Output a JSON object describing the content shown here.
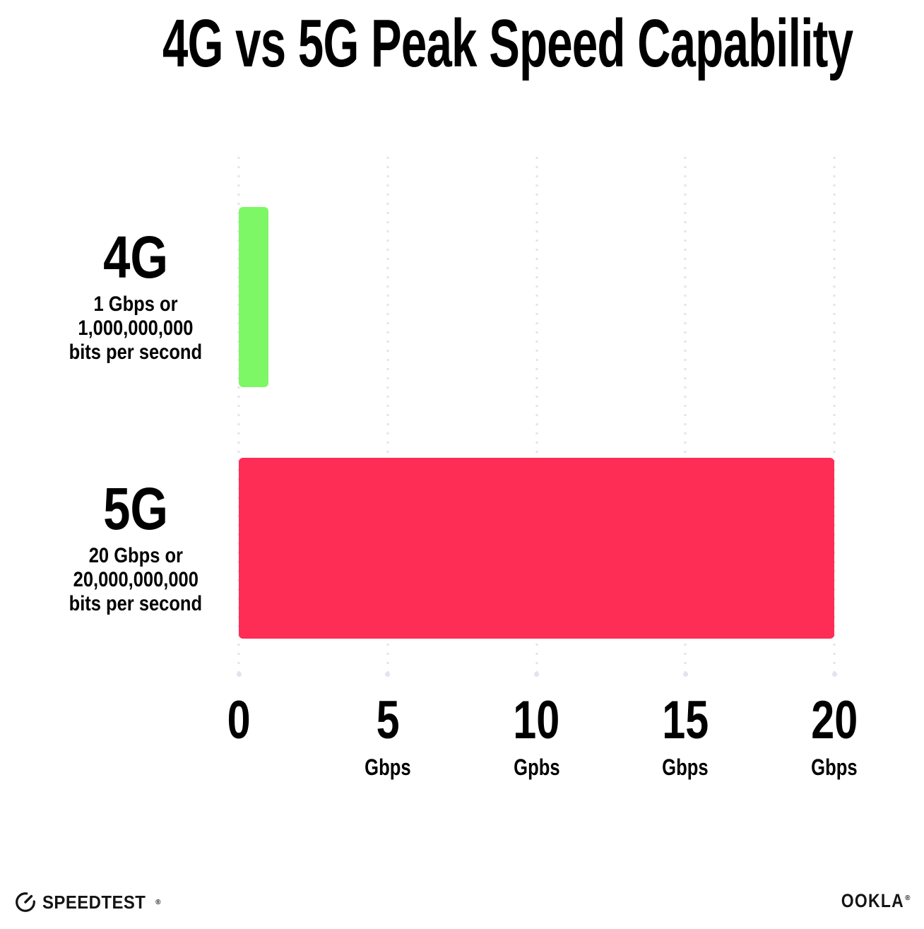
{
  "title": "4G vs 5G Peak Speed Capability",
  "chart_data": {
    "type": "bar",
    "orientation": "horizontal",
    "title": "4G vs 5G Peak Speed Capability",
    "categories": [
      "4G",
      "5G"
    ],
    "values": [
      1,
      20
    ],
    "value_unit": "Gbps",
    "bar_colors": [
      "#7DF765",
      "#FD2D56"
    ],
    "category_sublabels": [
      [
        "1 Gbps or",
        "1,000,000,000",
        "bits per second"
      ],
      [
        "20 Gbps or",
        "20,000,000,000",
        "bits per second"
      ]
    ],
    "xlim": [
      0,
      20
    ],
    "x_ticks": [
      {
        "value": 0,
        "label": "0",
        "unit": ""
      },
      {
        "value": 5,
        "label": "5",
        "unit": "Gbps"
      },
      {
        "value": 10,
        "label": "10",
        "unit": "Gpbs"
      },
      {
        "value": 15,
        "label": "15",
        "unit": "Gbps"
      },
      {
        "value": 20,
        "label": "20",
        "unit": "Gbps"
      }
    ],
    "grid": "vertical-dotted",
    "grid_color": "#E3E3EE",
    "background": "#FFFFFF",
    "legend": "none"
  },
  "footer": {
    "speedtest_label": "SPEEDTEST",
    "speedtest_trademark": "®",
    "ookla_label": "OOKLA",
    "ookla_trademark": "®"
  }
}
